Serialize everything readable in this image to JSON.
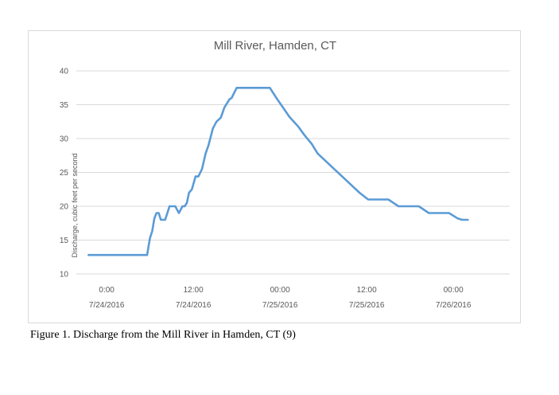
{
  "caption": "Figure 1. Discharge from the Mill River in Hamden, CT (9)",
  "chart_data": {
    "type": "line",
    "title": "Mill River, Hamden, CT",
    "xlabel": "",
    "ylabel": "Discharge, cubic feet per second",
    "ylim": [
      10,
      40
    ],
    "yticks": [
      10,
      15,
      20,
      25,
      30,
      35,
      40
    ],
    "xlim_hours": [
      -4.2,
      55.8
    ],
    "xticks": [
      {
        "hour": 0,
        "time": "0:00",
        "date": "7/24/2016"
      },
      {
        "hour": 12,
        "time": "12:00",
        "date": "7/24/2016"
      },
      {
        "hour": 24,
        "time": "00:00",
        "date": "7/25/2016"
      },
      {
        "hour": 36,
        "time": "12:00",
        "date": "7/25/2016"
      },
      {
        "hour": 48,
        "time": "00:00",
        "date": "7/26/2016"
      }
    ],
    "grid": true,
    "line_color": "#5b9bd5",
    "series": [
      {
        "name": "",
        "x_hours": [
          -2.5,
          0,
          2,
          4,
          5.6,
          6.0,
          6.3,
          6.6,
          6.9,
          7.2,
          7.5,
          7.8,
          8.1,
          8.7,
          9.0,
          9.5,
          10.0,
          10.5,
          10.8,
          11.1,
          11.4,
          11.8,
          12.3,
          12.7,
          13.2,
          13.7,
          14.1,
          14.7,
          15.2,
          15.8,
          16.3,
          17.0,
          17.3,
          18.0,
          18.6,
          19.3,
          20.0,
          20.5,
          21.2,
          21.9,
          22.6,
          23.5,
          24.4,
          25.3,
          26.5,
          27.4,
          28.4,
          29.2,
          30.2,
          31.4,
          32.6,
          33.8,
          35.0,
          36.2,
          37.6,
          39.0,
          40.4,
          41.8,
          43.2,
          44.6,
          46.0,
          47.4,
          48.6,
          49.2,
          50.0
        ],
        "y": [
          12.8,
          12.8,
          12.8,
          12.8,
          12.8,
          15.3,
          16.3,
          18.2,
          19.0,
          19.0,
          18.0,
          18.0,
          18.0,
          20.0,
          20.0,
          20.0,
          19.0,
          20.0,
          20.0,
          20.5,
          22.0,
          22.5,
          24.4,
          24.4,
          25.5,
          27.8,
          29.0,
          31.5,
          32.5,
          33.1,
          34.6,
          35.8,
          36.0,
          37.5,
          37.5,
          37.5,
          37.5,
          37.5,
          37.5,
          37.5,
          37.5,
          36.0,
          34.6,
          33.2,
          31.8,
          30.5,
          29.2,
          27.8,
          26.8,
          25.6,
          24.4,
          23.2,
          22.0,
          21.0,
          21.0,
          21.0,
          20.0,
          20.0,
          20.0,
          19.0,
          19.0,
          19.0,
          18.2,
          18.0,
          18.0
        ]
      }
    ]
  }
}
